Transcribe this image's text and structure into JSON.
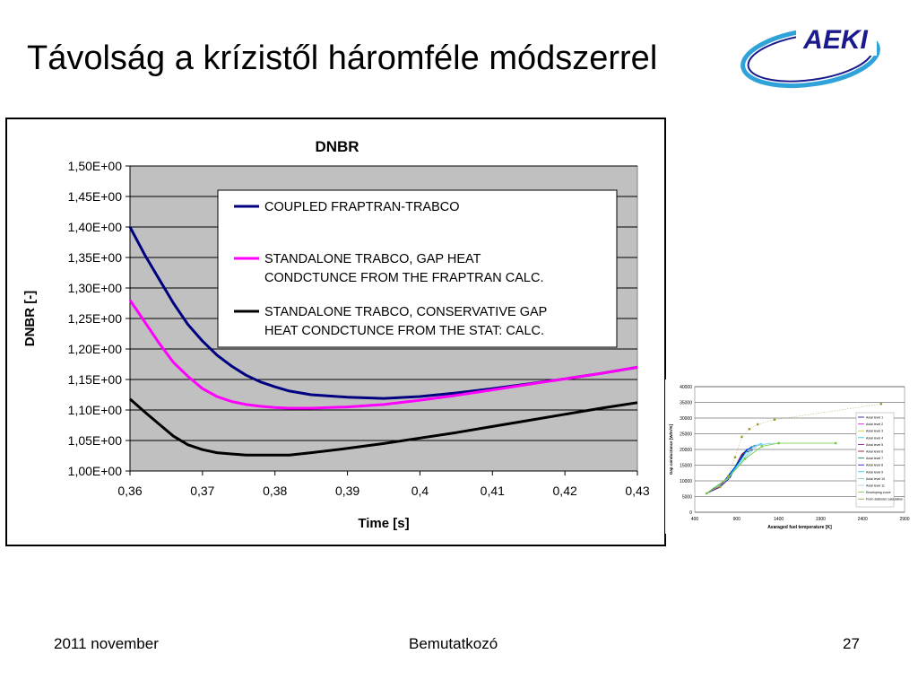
{
  "slide": {
    "title": "Távolság a krízistől háromféle módszerrel",
    "logo_text": "AEKI",
    "footer_left": "2011 november",
    "footer_center": "Bemutatkozó",
    "footer_right": "27"
  },
  "colors": {
    "plot_bg": "#c0c0c0",
    "coupled": "#000080",
    "standalone_gap": "#ff00ff",
    "standalone_conservative": "#000000",
    "logo_blue": "#1a1a8c",
    "logo_ring": "#2fa3d9"
  },
  "chart_data": [
    {
      "type": "line",
      "title": "DNBR",
      "xlabel": "Time [s]",
      "ylabel": "DNBR [-]",
      "xlim": [
        0.36,
        0.43
      ],
      "ylim": [
        1.0,
        1.5
      ],
      "xticks": [
        0.36,
        0.37,
        0.38,
        0.39,
        0.4,
        0.41,
        0.42,
        0.43
      ],
      "xtick_labels": [
        "0,36",
        "0,37",
        "0,38",
        "0,39",
        "0,4",
        "0,41",
        "0,42",
        "0,43"
      ],
      "yticks": [
        1.0,
        1.05,
        1.1,
        1.15,
        1.2,
        1.25,
        1.3,
        1.35,
        1.4,
        1.45,
        1.5
      ],
      "ytick_labels": [
        "1,00E+00",
        "1,05E+00",
        "1,10E+00",
        "1,15E+00",
        "1,20E+00",
        "1,25E+00",
        "1,30E+00",
        "1,35E+00",
        "1,40E+00",
        "1,45E+00",
        "1,50E+00"
      ],
      "grid": true,
      "legend": "top-right",
      "series": [
        {
          "name": "COUPLED FRAPTRAN-TRABCO",
          "legend_lines": [
            "COUPLED FRAPTRAN-TRABCO"
          ],
          "x": [
            0.36,
            0.362,
            0.364,
            0.366,
            0.368,
            0.37,
            0.372,
            0.374,
            0.376,
            0.378,
            0.38,
            0.382,
            0.385,
            0.39,
            0.395,
            0.4,
            0.405,
            0.41,
            0.415,
            0.42,
            0.425,
            0.43
          ],
          "y": [
            1.4,
            1.355,
            1.315,
            1.275,
            1.24,
            1.213,
            1.19,
            1.172,
            1.157,
            1.146,
            1.138,
            1.131,
            1.125,
            1.121,
            1.119,
            1.122,
            1.128,
            1.135,
            1.143,
            1.151,
            1.16,
            1.17
          ]
        },
        {
          "name": "STANDALONE TRABCO, GAP HEAT CONDCTUNCE FROM THE FRAPTRAN CALC.",
          "legend_lines": [
            "STANDALONE TRABCO, GAP HEAT",
            "CONDCTUNCE FROM THE FRAPTRAN CALC."
          ],
          "x": [
            0.36,
            0.362,
            0.364,
            0.366,
            0.368,
            0.37,
            0.372,
            0.374,
            0.376,
            0.378,
            0.38,
            0.382,
            0.385,
            0.39,
            0.395,
            0.4,
            0.405,
            0.41,
            0.415,
            0.42,
            0.425,
            0.43
          ],
          "y": [
            1.28,
            1.245,
            1.21,
            1.178,
            1.155,
            1.135,
            1.122,
            1.114,
            1.109,
            1.106,
            1.104,
            1.103,
            1.103,
            1.105,
            1.109,
            1.116,
            1.124,
            1.133,
            1.142,
            1.151,
            1.16,
            1.17
          ]
        },
        {
          "name": "STANDALONE TRABCO, CONSERVATIVE GAP HEAT CONDCTUNCE FROM THE STAT: CALC.",
          "legend_lines": [
            "STANDALONE TRABCO, CONSERVATIVE GAP",
            "HEAT CONDCTUNCE FROM THE STAT: CALC."
          ],
          "x": [
            0.36,
            0.362,
            0.364,
            0.366,
            0.368,
            0.37,
            0.372,
            0.374,
            0.376,
            0.378,
            0.38,
            0.382,
            0.385,
            0.39,
            0.395,
            0.4,
            0.405,
            0.41,
            0.415,
            0.42,
            0.425,
            0.43
          ],
          "y": [
            1.118,
            1.097,
            1.077,
            1.057,
            1.043,
            1.035,
            1.03,
            1.028,
            1.026,
            1.026,
            1.026,
            1.026,
            1.03,
            1.037,
            1.045,
            1.054,
            1.063,
            1.073,
            1.083,
            1.093,
            1.103,
            1.112
          ]
        }
      ]
    },
    {
      "type": "line",
      "title": "",
      "xlabel": "Avaraged fuel temperature [K]",
      "ylabel": "Gap conductance [W/m²K]",
      "xlim": [
        400,
        2900
      ],
      "ylim": [
        0,
        40000
      ],
      "xticks": [
        400,
        900,
        1400,
        1900,
        2400,
        2900
      ],
      "xtick_labels": [
        "400",
        "900",
        "1400",
        "1900",
        "2400",
        "2900"
      ],
      "yticks": [
        0,
        5000,
        10000,
        15000,
        20000,
        25000,
        30000,
        35000,
        40000
      ],
      "ytick_labels": [
        "0",
        "5000",
        "10000",
        "15000",
        "20000",
        "25000",
        "30000",
        "35000",
        "40000"
      ],
      "grid": true,
      "legend": "right",
      "series": [
        {
          "name": "Axial level 1",
          "color": "#000080",
          "x": [
            540,
            700,
            820,
            900,
            1000,
            1100
          ],
          "y": [
            6000,
            8000,
            11000,
            15000,
            19000,
            20000
          ]
        },
        {
          "name": "Axial level 2",
          "color": "#ff00ff",
          "x": [
            550,
            700,
            830,
            920,
            1020
          ],
          "y": [
            6200,
            8300,
            12000,
            16000,
            19500
          ]
        },
        {
          "name": "Axial level 3",
          "color": "#cccc00",
          "x": [
            560,
            710,
            840,
            930,
            1040
          ],
          "y": [
            6400,
            8600,
            12500,
            17000,
            20000
          ]
        },
        {
          "name": "Axial level 4",
          "color": "#00cccc",
          "x": [
            570,
            720,
            850,
            950,
            1060
          ],
          "y": [
            6600,
            9000,
            13000,
            18000,
            20500
          ]
        },
        {
          "name": "Axial level 5",
          "color": "#800080",
          "x": [
            580,
            730,
            860,
            960,
            1080
          ],
          "y": [
            6800,
            9300,
            13500,
            18500,
            21000
          ]
        },
        {
          "name": "Axial level 6",
          "color": "#800000",
          "x": [
            590,
            740,
            870,
            980,
            1100
          ],
          "y": [
            7000,
            9600,
            14000,
            19000,
            21000
          ]
        },
        {
          "name": "Axial level 7",
          "color": "#008080",
          "x": [
            600,
            750,
            880,
            1000,
            1120
          ],
          "y": [
            7200,
            9900,
            14500,
            19500,
            21500
          ]
        },
        {
          "name": "Axial level 8",
          "color": "#0000ff",
          "x": [
            610,
            760,
            900,
            1020,
            1160
          ],
          "y": [
            7400,
            10200,
            15000,
            20000,
            21500
          ]
        },
        {
          "name": "Axial level 9",
          "color": "#00ccff",
          "x": [
            620,
            780,
            920,
            1050,
            1200
          ],
          "y": [
            7600,
            10500,
            15500,
            20500,
            22000
          ]
        },
        {
          "name": "Axial level 10",
          "color": "#66cccc",
          "x": [
            640,
            800,
            950,
            1100,
            1300
          ],
          "y": [
            7800,
            11000,
            16000,
            21000,
            22000
          ]
        },
        {
          "name": "Axial level 11",
          "color": "#99ccff",
          "x": [
            660,
            820,
            980,
            1150,
            1350
          ],
          "y": [
            8000,
            11500,
            16500,
            21500,
            22000
          ]
        },
        {
          "name": "Enveloping curve",
          "color": "#66cc33",
          "x": [
            540,
            800,
            1000,
            1200,
            1400,
            2080
          ],
          "y": [
            6000,
            11000,
            17000,
            21000,
            22000,
            22000
          ]
        },
        {
          "name": "From stationer calculation",
          "color": "#999933",
          "x": [
            700,
            800,
            880,
            960,
            1050,
            1150,
            1350,
            2620
          ],
          "y": [
            8000,
            11500,
            17500,
            24000,
            26500,
            28000,
            29500,
            34500
          ]
        }
      ]
    }
  ]
}
